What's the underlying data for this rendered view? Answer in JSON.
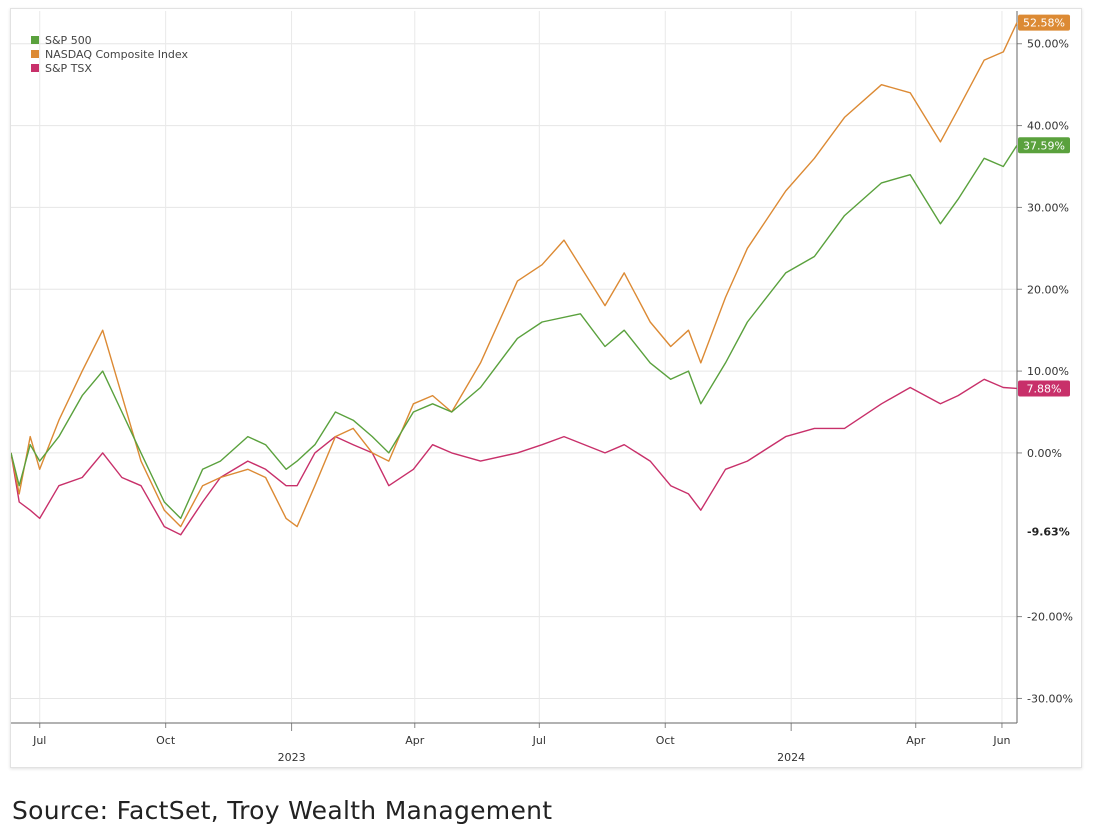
{
  "chart_data": {
    "type": "line",
    "x_tick_labels": [
      "Jul",
      "Oct",
      "Apr",
      "Jul",
      "Oct",
      "Apr",
      "Jun"
    ],
    "x_year_labels": [
      "2023",
      "2024"
    ],
    "y_tick_labels": [
      "50.00%",
      "40.00%",
      "30.00%",
      "20.00%",
      "10.00%",
      "0.00%",
      "-20.00%",
      "-30.00%"
    ],
    "ylim": [
      -33,
      54
    ],
    "xlim": [
      "2022-06-10",
      "2024-06-14"
    ],
    "grid": true,
    "legend_position": "top-left",
    "callouts": [
      {
        "label": "52.58%",
        "value": 52.58,
        "series": "NASDAQ Composite Index"
      },
      {
        "label": "37.59%",
        "value": 37.59,
        "series": "S&P 500"
      },
      {
        "label": "7.88%",
        "value": 7.88,
        "series": "S&P TSX"
      },
      {
        "label": "-9.63%",
        "value": -9.63,
        "series": null
      }
    ],
    "series": [
      {
        "name": "S&P 500",
        "color": "#5aa13d",
        "points": [
          [
            "2022-06-10",
            0
          ],
          [
            "2022-06-16",
            -4
          ],
          [
            "2022-06-24",
            1
          ],
          [
            "2022-07-01",
            -1
          ],
          [
            "2022-07-15",
            2
          ],
          [
            "2022-08-01",
            7
          ],
          [
            "2022-08-16",
            10
          ],
          [
            "2022-08-30",
            5
          ],
          [
            "2022-09-13",
            0
          ],
          [
            "2022-09-30",
            -6
          ],
          [
            "2022-10-12",
            -8
          ],
          [
            "2022-10-28",
            -2
          ],
          [
            "2022-11-10",
            -1
          ],
          [
            "2022-11-30",
            2
          ],
          [
            "2022-12-13",
            1
          ],
          [
            "2022-12-28",
            -2
          ],
          [
            "2023-01-05",
            -1
          ],
          [
            "2023-01-18",
            1
          ],
          [
            "2023-02-02",
            5
          ],
          [
            "2023-02-15",
            4
          ],
          [
            "2023-03-01",
            2
          ],
          [
            "2023-03-13",
            0
          ],
          [
            "2023-03-31",
            5
          ],
          [
            "2023-04-14",
            6
          ],
          [
            "2023-04-28",
            5
          ],
          [
            "2023-05-19",
            8
          ],
          [
            "2023-06-15",
            14
          ],
          [
            "2023-07-03",
            16
          ],
          [
            "2023-07-31",
            17
          ],
          [
            "2023-08-18",
            13
          ],
          [
            "2023-09-01",
            15
          ],
          [
            "2023-09-20",
            11
          ],
          [
            "2023-10-05",
            9
          ],
          [
            "2023-10-18",
            10
          ],
          [
            "2023-10-27",
            6
          ],
          [
            "2023-11-14",
            11
          ],
          [
            "2023-11-30",
            16
          ],
          [
            "2023-12-28",
            22
          ],
          [
            "2024-01-18",
            24
          ],
          [
            "2024-02-09",
            29
          ],
          [
            "2024-03-07",
            33
          ],
          [
            "2024-03-28",
            34
          ],
          [
            "2024-04-19",
            28
          ],
          [
            "2024-05-02",
            31
          ],
          [
            "2024-05-21",
            36
          ],
          [
            "2024-06-04",
            35
          ],
          [
            "2024-06-14",
            37.59
          ]
        ]
      },
      {
        "name": "NASDAQ Composite Index",
        "color": "#dc8a34",
        "points": [
          [
            "2022-06-10",
            0
          ],
          [
            "2022-06-16",
            -5
          ],
          [
            "2022-06-24",
            2
          ],
          [
            "2022-07-01",
            -2
          ],
          [
            "2022-07-15",
            4
          ],
          [
            "2022-08-01",
            10
          ],
          [
            "2022-08-16",
            15
          ],
          [
            "2022-08-30",
            7
          ],
          [
            "2022-09-13",
            -1
          ],
          [
            "2022-09-30",
            -7
          ],
          [
            "2022-10-12",
            -9
          ],
          [
            "2022-10-28",
            -4
          ],
          [
            "2022-11-10",
            -3
          ],
          [
            "2022-11-30",
            -2
          ],
          [
            "2022-12-13",
            -3
          ],
          [
            "2022-12-28",
            -8
          ],
          [
            "2023-01-05",
            -9
          ],
          [
            "2023-01-18",
            -4
          ],
          [
            "2023-02-02",
            2
          ],
          [
            "2023-02-15",
            3
          ],
          [
            "2023-03-01",
            0
          ],
          [
            "2023-03-13",
            -1
          ],
          [
            "2023-03-31",
            6
          ],
          [
            "2023-04-14",
            7
          ],
          [
            "2023-04-28",
            5
          ],
          [
            "2023-05-19",
            11
          ],
          [
            "2023-06-15",
            21
          ],
          [
            "2023-07-03",
            23
          ],
          [
            "2023-07-19",
            26
          ],
          [
            "2023-08-18",
            18
          ],
          [
            "2023-09-01",
            22
          ],
          [
            "2023-09-20",
            16
          ],
          [
            "2023-10-05",
            13
          ],
          [
            "2023-10-18",
            15
          ],
          [
            "2023-10-27",
            11
          ],
          [
            "2023-11-14",
            19
          ],
          [
            "2023-11-30",
            25
          ],
          [
            "2023-12-28",
            32
          ],
          [
            "2024-01-18",
            36
          ],
          [
            "2024-02-09",
            41
          ],
          [
            "2024-03-07",
            45
          ],
          [
            "2024-03-28",
            44
          ],
          [
            "2024-04-19",
            38
          ],
          [
            "2024-05-02",
            42
          ],
          [
            "2024-05-21",
            48
          ],
          [
            "2024-06-04",
            49
          ],
          [
            "2024-06-14",
            52.58
          ]
        ]
      },
      {
        "name": "S&P TSX",
        "color": "#c8306a",
        "points": [
          [
            "2022-06-10",
            0
          ],
          [
            "2022-06-16",
            -6
          ],
          [
            "2022-06-24",
            -7
          ],
          [
            "2022-07-01",
            -8
          ],
          [
            "2022-07-15",
            -4
          ],
          [
            "2022-08-01",
            -3
          ],
          [
            "2022-08-16",
            0
          ],
          [
            "2022-08-30",
            -3
          ],
          [
            "2022-09-13",
            -4
          ],
          [
            "2022-09-30",
            -9
          ],
          [
            "2022-10-12",
            -10
          ],
          [
            "2022-10-28",
            -6
          ],
          [
            "2022-11-10",
            -3
          ],
          [
            "2022-11-30",
            -1
          ],
          [
            "2022-12-13",
            -2
          ],
          [
            "2022-12-28",
            -4
          ],
          [
            "2023-01-05",
            -4
          ],
          [
            "2023-01-18",
            0
          ],
          [
            "2023-02-02",
            2
          ],
          [
            "2023-02-15",
            1
          ],
          [
            "2023-03-01",
            0
          ],
          [
            "2023-03-13",
            -4
          ],
          [
            "2023-03-31",
            -2
          ],
          [
            "2023-04-14",
            1
          ],
          [
            "2023-04-28",
            0
          ],
          [
            "2023-05-19",
            -1
          ],
          [
            "2023-06-15",
            0
          ],
          [
            "2023-07-03",
            1
          ],
          [
            "2023-07-19",
            2
          ],
          [
            "2023-08-18",
            0
          ],
          [
            "2023-09-01",
            1
          ],
          [
            "2023-09-20",
            -1
          ],
          [
            "2023-10-05",
            -4
          ],
          [
            "2023-10-18",
            -5
          ],
          [
            "2023-10-27",
            -7
          ],
          [
            "2023-11-14",
            -2
          ],
          [
            "2023-11-30",
            -1
          ],
          [
            "2023-12-28",
            2
          ],
          [
            "2024-01-18",
            3
          ],
          [
            "2024-02-09",
            3
          ],
          [
            "2024-03-07",
            6
          ],
          [
            "2024-03-28",
            8
          ],
          [
            "2024-04-19",
            6
          ],
          [
            "2024-05-02",
            7
          ],
          [
            "2024-05-21",
            9
          ],
          [
            "2024-06-04",
            8
          ],
          [
            "2024-06-14",
            7.88
          ]
        ]
      }
    ]
  },
  "source_text": "Source:  FactSet, Troy Wealth Management"
}
